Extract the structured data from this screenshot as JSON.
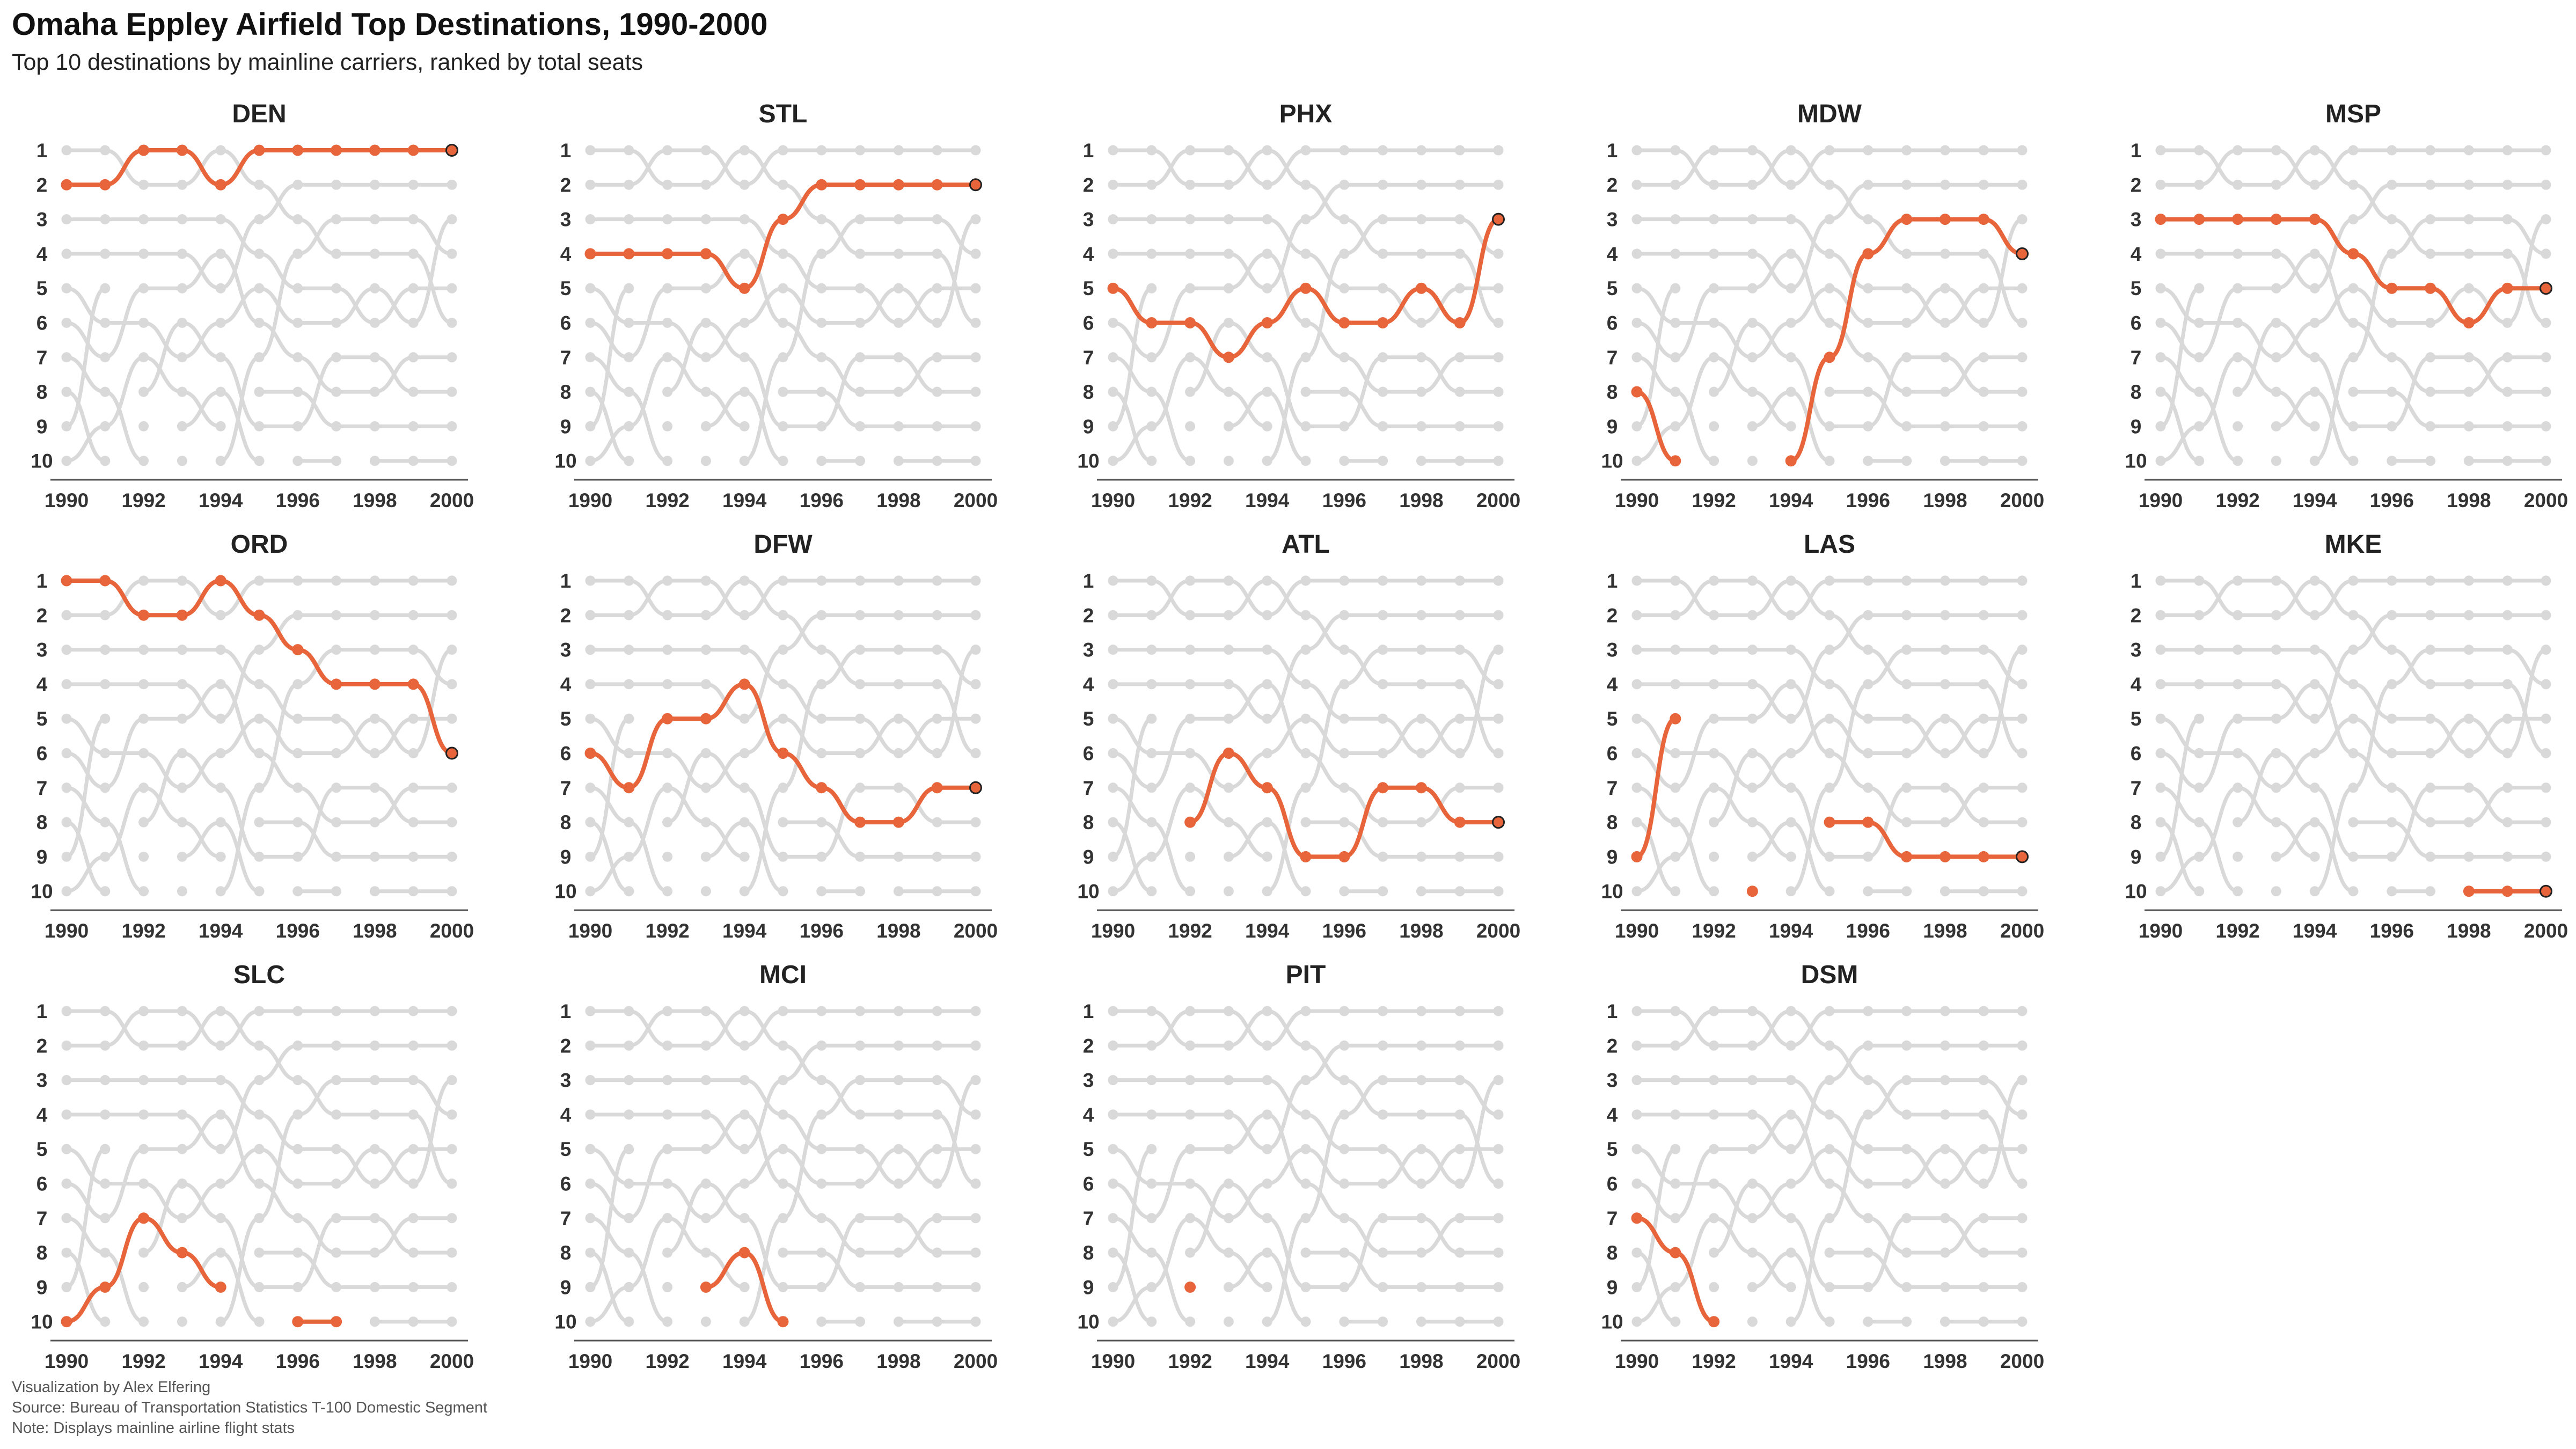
{
  "title": "Omaha Eppley Airfield Top Destinations, 1990-2000",
  "subtitle": "Top 10 destinations by mainline carriers, ranked by total seats",
  "caption": [
    "Visualization by Alex Elfering",
    "Source: Bureau of Transportation Statistics T-100 Domestic Segment",
    "Note: Displays mainline airline flight stats"
  ],
  "colors": {
    "highlight": "#E8643A",
    "background_series": "#D9D9D9",
    "axis": "#555555"
  },
  "chart_data": {
    "type": "line",
    "subtype": "bump chart (small multiples)",
    "x": [
      1990,
      1991,
      1992,
      1993,
      1994,
      1995,
      1996,
      1997,
      1998,
      1999,
      2000
    ],
    "x_tick_labels": [
      "1990",
      "1992",
      "1994",
      "1996",
      "1998",
      "2000"
    ],
    "y_tick_labels": [
      "1",
      "2",
      "3",
      "4",
      "5",
      "6",
      "7",
      "8",
      "9",
      "10"
    ],
    "ylim": [
      1,
      10
    ],
    "y_reversed": true,
    "series": [
      {
        "name": "DEN",
        "values": [
          2,
          2,
          1,
          1,
          2,
          1,
          1,
          1,
          1,
          1,
          1
        ]
      },
      {
        "name": "STL",
        "values": [
          4,
          4,
          4,
          4,
          5,
          3,
          2,
          2,
          2,
          2,
          2
        ]
      },
      {
        "name": "PHX",
        "values": [
          5,
          6,
          6,
          7,
          6,
          5,
          6,
          6,
          5,
          6,
          3
        ]
      },
      {
        "name": "MDW",
        "values": [
          8,
          10,
          null,
          null,
          10,
          7,
          4,
          3,
          3,
          3,
          4
        ]
      },
      {
        "name": "MSP",
        "values": [
          3,
          3,
          3,
          3,
          3,
          4,
          5,
          5,
          6,
          5,
          5
        ]
      },
      {
        "name": "ORD",
        "values": [
          1,
          1,
          2,
          2,
          1,
          2,
          3,
          4,
          4,
          4,
          6
        ]
      },
      {
        "name": "DFW",
        "values": [
          6,
          7,
          5,
          5,
          4,
          6,
          7,
          8,
          8,
          7,
          7
        ]
      },
      {
        "name": "ATL",
        "values": [
          null,
          null,
          8,
          6,
          7,
          9,
          9,
          7,
          7,
          8,
          8
        ]
      },
      {
        "name": "LAS",
        "values": [
          9,
          5,
          null,
          10,
          null,
          8,
          8,
          9,
          9,
          9,
          9
        ]
      },
      {
        "name": "MKE",
        "values": [
          null,
          null,
          null,
          null,
          null,
          null,
          null,
          null,
          10,
          10,
          10
        ]
      },
      {
        "name": "SLC",
        "values": [
          10,
          9,
          7,
          8,
          9,
          null,
          10,
          10,
          null,
          null,
          null
        ]
      },
      {
        "name": "MCI",
        "values": [
          null,
          null,
          null,
          9,
          8,
          10,
          null,
          null,
          null,
          null,
          null
        ]
      },
      {
        "name": "PIT",
        "values": [
          null,
          null,
          9,
          null,
          null,
          null,
          null,
          null,
          null,
          null,
          null
        ]
      },
      {
        "name": "DSM",
        "values": [
          7,
          8,
          10,
          null,
          null,
          null,
          null,
          null,
          null,
          null,
          null
        ]
      }
    ]
  }
}
